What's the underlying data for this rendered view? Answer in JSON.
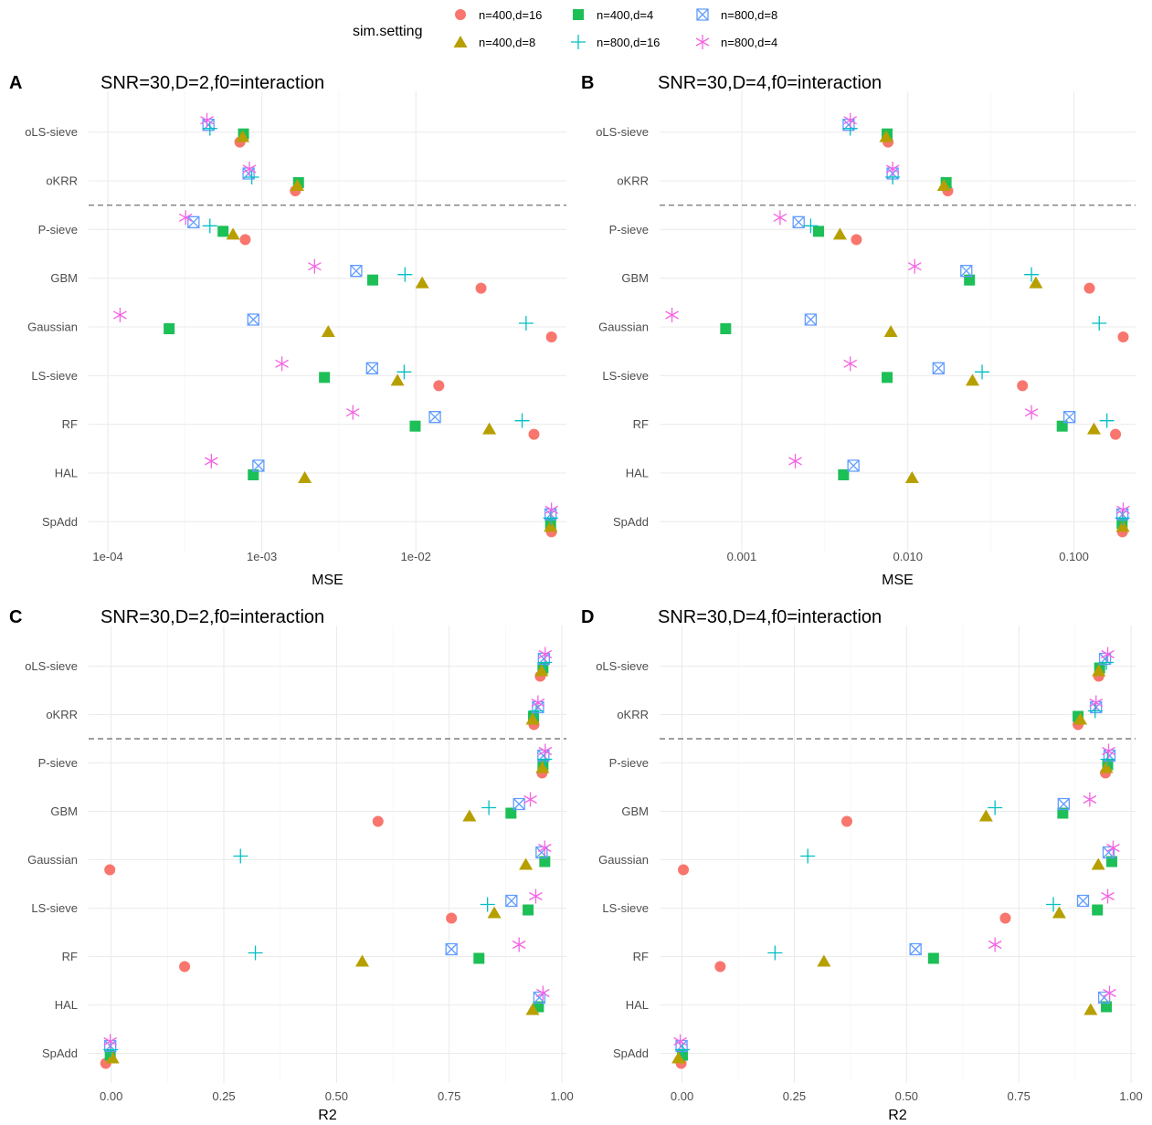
{
  "legend": {
    "title": "sim.setting",
    "entries": [
      {
        "label": "n=400,d=16",
        "shape": "circle",
        "color": "#F8766D"
      },
      {
        "label": "n=400,d=4",
        "shape": "square",
        "color": "#1DBF57"
      },
      {
        "label": "n=800,d=8",
        "shape": "boxcross",
        "color": "#619CFF"
      },
      {
        "label": "n=400,d=8",
        "shape": "triangle",
        "color": "#B79F00"
      },
      {
        "label": "n=800,d=16",
        "shape": "plus",
        "color": "#00BFC4"
      },
      {
        "label": "n=800,d=4",
        "shape": "asterisk",
        "color": "#F564E3"
      }
    ]
  },
  "categories": [
    "oLS-sieve",
    "oKRR",
    "P-sieve",
    "GBM",
    "Gaussian",
    "LS-sieve",
    "RF",
    "HAL",
    "SpAdd"
  ],
  "chart_data": [
    {
      "tag": "A",
      "type": "scatter",
      "title": "SNR=30,D=2,f0=interaction",
      "xlabel": "MSE",
      "xscale": "log",
      "xlim": [
        7.5e-05,
        0.095
      ],
      "xticks": [
        0.0001,
        0.001,
        0.01
      ],
      "xtick_labels": [
        "1e-04",
        "1e-03",
        "1e-02"
      ],
      "series": [
        {
          "name": "n=400,d=16",
          "values": {
            "oLS-sieve": 0.00072,
            "oKRR": 0.00165,
            "P-sieve": 0.00078,
            "GBM": 0.0265,
            "Gaussian": 0.076,
            "LS-sieve": 0.0141,
            "RF": 0.0585,
            "SpAdd": 0.076
          }
        },
        {
          "name": "n=400,d=4",
          "values": {
            "oLS-sieve": 0.00076,
            "oKRR": 0.00173,
            "P-sieve": 0.00056,
            "GBM": 0.00525,
            "Gaussian": 0.00025,
            "LS-sieve": 0.00255,
            "RF": 0.0099,
            "HAL": 0.00088,
            "SpAdd": 0.075
          }
        },
        {
          "name": "n=800,d=8",
          "values": {
            "oLS-sieve": 0.00045,
            "oKRR": 0.00082,
            "P-sieve": 0.00036,
            "GBM": 0.0041,
            "Gaussian": 0.00088,
            "LS-sieve": 0.0052,
            "RF": 0.0133,
            "HAL": 0.00095,
            "SpAdd": 0.075
          }
        },
        {
          "name": "n=400,d=8",
          "values": {
            "oLS-sieve": 0.00075,
            "oKRR": 0.0017,
            "P-sieve": 0.00065,
            "GBM": 0.011,
            "Gaussian": 0.0027,
            "LS-sieve": 0.0076,
            "RF": 0.03,
            "HAL": 0.0019,
            "SpAdd": 0.075
          }
        },
        {
          "name": "n=800,d=16",
          "values": {
            "oLS-sieve": 0.00046,
            "oKRR": 0.00086,
            "P-sieve": 0.00046,
            "GBM": 0.0085,
            "Gaussian": 0.052,
            "LS-sieve": 0.0084,
            "RF": 0.049,
            "SpAdd": 0.075
          }
        },
        {
          "name": "n=800,d=4",
          "values": {
            "oLS-sieve": 0.00044,
            "oKRR": 0.00083,
            "P-sieve": 0.00032,
            "GBM": 0.0022,
            "Gaussian": 0.00012,
            "LS-sieve": 0.00135,
            "RF": 0.0039,
            "HAL": 0.00047,
            "SpAdd": 0.076
          }
        }
      ]
    },
    {
      "tag": "B",
      "type": "scatter",
      "title": "SNR=30,D=4,f0=interaction",
      "xlabel": "MSE",
      "xscale": "log",
      "xlim": [
        0.00032,
        0.235
      ],
      "xticks": [
        0.001,
        0.01,
        0.1
      ],
      "xtick_labels": [
        "0.001",
        "0.010",
        "0.100"
      ],
      "series": [
        {
          "name": "n=400,d=16",
          "values": {
            "oLS-sieve": 0.0076,
            "oKRR": 0.0174,
            "P-sieve": 0.0049,
            "GBM": 0.124,
            "Gaussian": 0.198,
            "LS-sieve": 0.049,
            "RF": 0.178,
            "SpAdd": 0.196
          }
        },
        {
          "name": "n=400,d=4",
          "values": {
            "oLS-sieve": 0.0075,
            "oKRR": 0.017,
            "P-sieve": 0.0029,
            "GBM": 0.0235,
            "Gaussian": 0.0008,
            "LS-sieve": 0.0075,
            "RF": 0.085,
            "HAL": 0.0041,
            "SpAdd": 0.195
          }
        },
        {
          "name": "n=800,d=8",
          "values": {
            "oLS-sieve": 0.0044,
            "oKRR": 0.0081,
            "P-sieve": 0.0022,
            "GBM": 0.0225,
            "Gaussian": 0.0026,
            "LS-sieve": 0.0153,
            "RF": 0.094,
            "HAL": 0.0047,
            "SpAdd": 0.196
          }
        },
        {
          "name": "n=400,d=8",
          "values": {
            "oLS-sieve": 0.0074,
            "oKRR": 0.0165,
            "P-sieve": 0.0039,
            "GBM": 0.059,
            "Gaussian": 0.0079,
            "LS-sieve": 0.0245,
            "RF": 0.132,
            "HAL": 0.0106,
            "SpAdd": 0.197
          }
        },
        {
          "name": "n=800,d=16",
          "values": {
            "oLS-sieve": 0.0045,
            "oKRR": 0.0081,
            "P-sieve": 0.0026,
            "GBM": 0.0555,
            "Gaussian": 0.142,
            "LS-sieve": 0.028,
            "RF": 0.158,
            "SpAdd": 0.196
          }
        },
        {
          "name": "n=800,d=4",
          "values": {
            "oLS-sieve": 0.0045,
            "oKRR": 0.0081,
            "P-sieve": 0.0017,
            "GBM": 0.011,
            "Gaussian": 0.00038,
            "LS-sieve": 0.0045,
            "RF": 0.0555,
            "HAL": 0.0021,
            "SpAdd": 0.198
          }
        }
      ]
    },
    {
      "tag": "C",
      "type": "scatter",
      "title": "SNR=30,D=2,f0=interaction",
      "xlabel": "R2",
      "xscale": "linear",
      "xlim": [
        -0.05,
        1.01
      ],
      "xticks": [
        0,
        0.25,
        0.5,
        0.75,
        1
      ],
      "xtick_labels": [
        "0.00",
        "0.25",
        "0.50",
        "0.75",
        "1.00"
      ],
      "series": [
        {
          "name": "n=400,d=16",
          "values": {
            "oLS-sieve": 0.952,
            "oKRR": 0.938,
            "P-sieve": 0.956,
            "GBM": 0.592,
            "Gaussian": -0.003,
            "LS-sieve": 0.755,
            "RF": 0.163,
            "SpAdd": -0.012
          }
        },
        {
          "name": "n=400,d=4",
          "values": {
            "oLS-sieve": 0.958,
            "oKRR": 0.937,
            "P-sieve": 0.958,
            "GBM": 0.887,
            "Gaussian": 0.962,
            "LS-sieve": 0.925,
            "RF": 0.816,
            "HAL": 0.948,
            "SpAdd": -0.002
          }
        },
        {
          "name": "n=800,d=8",
          "values": {
            "oLS-sieve": 0.96,
            "oKRR": 0.947,
            "P-sieve": 0.959,
            "GBM": 0.905,
            "Gaussian": 0.955,
            "LS-sieve": 0.888,
            "RF": 0.755,
            "HAL": 0.95,
            "SpAdd": -0.002
          }
        },
        {
          "name": "n=400,d=8",
          "values": {
            "oLS-sieve": 0.955,
            "oKRR": 0.935,
            "P-sieve": 0.957,
            "GBM": 0.795,
            "Gaussian": 0.92,
            "LS-sieve": 0.85,
            "RF": 0.557,
            "HAL": 0.935,
            "SpAdd": 0.003
          }
        },
        {
          "name": "n=800,d=16",
          "values": {
            "oLS-sieve": 0.962,
            "oKRR": 0.943,
            "P-sieve": 0.962,
            "GBM": 0.838,
            "Gaussian": 0.287,
            "LS-sieve": 0.835,
            "RF": 0.32,
            "SpAdd": -0.001
          }
        },
        {
          "name": "n=800,d=4",
          "values": {
            "oLS-sieve": 0.963,
            "oKRR": 0.947,
            "P-sieve": 0.963,
            "GBM": 0.93,
            "Gaussian": 0.962,
            "LS-sieve": 0.942,
            "RF": 0.905,
            "HAL": 0.958,
            "SpAdd": -0.002
          }
        }
      ]
    },
    {
      "tag": "D",
      "type": "scatter",
      "title": "SNR=30,D=4,f0=interaction",
      "xlabel": "R2",
      "xscale": "linear",
      "xlim": [
        -0.05,
        1.01
      ],
      "xticks": [
        0,
        0.25,
        0.5,
        0.75,
        1
      ],
      "xtick_labels": [
        "0.00",
        "0.25",
        "0.50",
        "0.75",
        "1.00"
      ],
      "series": [
        {
          "name": "n=400,d=16",
          "values": {
            "oLS-sieve": 0.928,
            "oKRR": 0.882,
            "P-sieve": 0.943,
            "GBM": 0.367,
            "Gaussian": 0.003,
            "LS-sieve": 0.72,
            "RF": 0.085,
            "SpAdd": -0.002
          }
        },
        {
          "name": "n=400,d=4",
          "values": {
            "oLS-sieve": 0.93,
            "oKRR": 0.882,
            "P-sieve": 0.948,
            "GBM": 0.848,
            "Gaussian": 0.957,
            "LS-sieve": 0.925,
            "RF": 0.56,
            "HAL": 0.945,
            "SpAdd": 0.001
          }
        },
        {
          "name": "n=800,d=8",
          "values": {
            "oLS-sieve": 0.942,
            "oKRR": 0.922,
            "P-sieve": 0.952,
            "GBM": 0.85,
            "Gaussian": 0.95,
            "LS-sieve": 0.893,
            "RF": 0.52,
            "HAL": 0.94,
            "SpAdd": -0.001
          }
        },
        {
          "name": "n=400,d=8",
          "values": {
            "oLS-sieve": 0.928,
            "oKRR": 0.887,
            "P-sieve": 0.945,
            "GBM": 0.677,
            "Gaussian": 0.927,
            "LS-sieve": 0.84,
            "RF": 0.316,
            "HAL": 0.91,
            "SpAdd": -0.008
          }
        },
        {
          "name": "n=800,d=16",
          "values": {
            "oLS-sieve": 0.945,
            "oKRR": 0.92,
            "P-sieve": 0.948,
            "GBM": 0.697,
            "Gaussian": 0.28,
            "LS-sieve": 0.827,
            "RF": 0.207,
            "SpAdd": 0.001
          }
        },
        {
          "name": "n=800,d=4",
          "values": {
            "oLS-sieve": 0.948,
            "oKRR": 0.922,
            "P-sieve": 0.95,
            "GBM": 0.908,
            "Gaussian": 0.96,
            "LS-sieve": 0.948,
            "RF": 0.697,
            "HAL": 0.952,
            "SpAdd": -0.004
          }
        }
      ]
    }
  ]
}
